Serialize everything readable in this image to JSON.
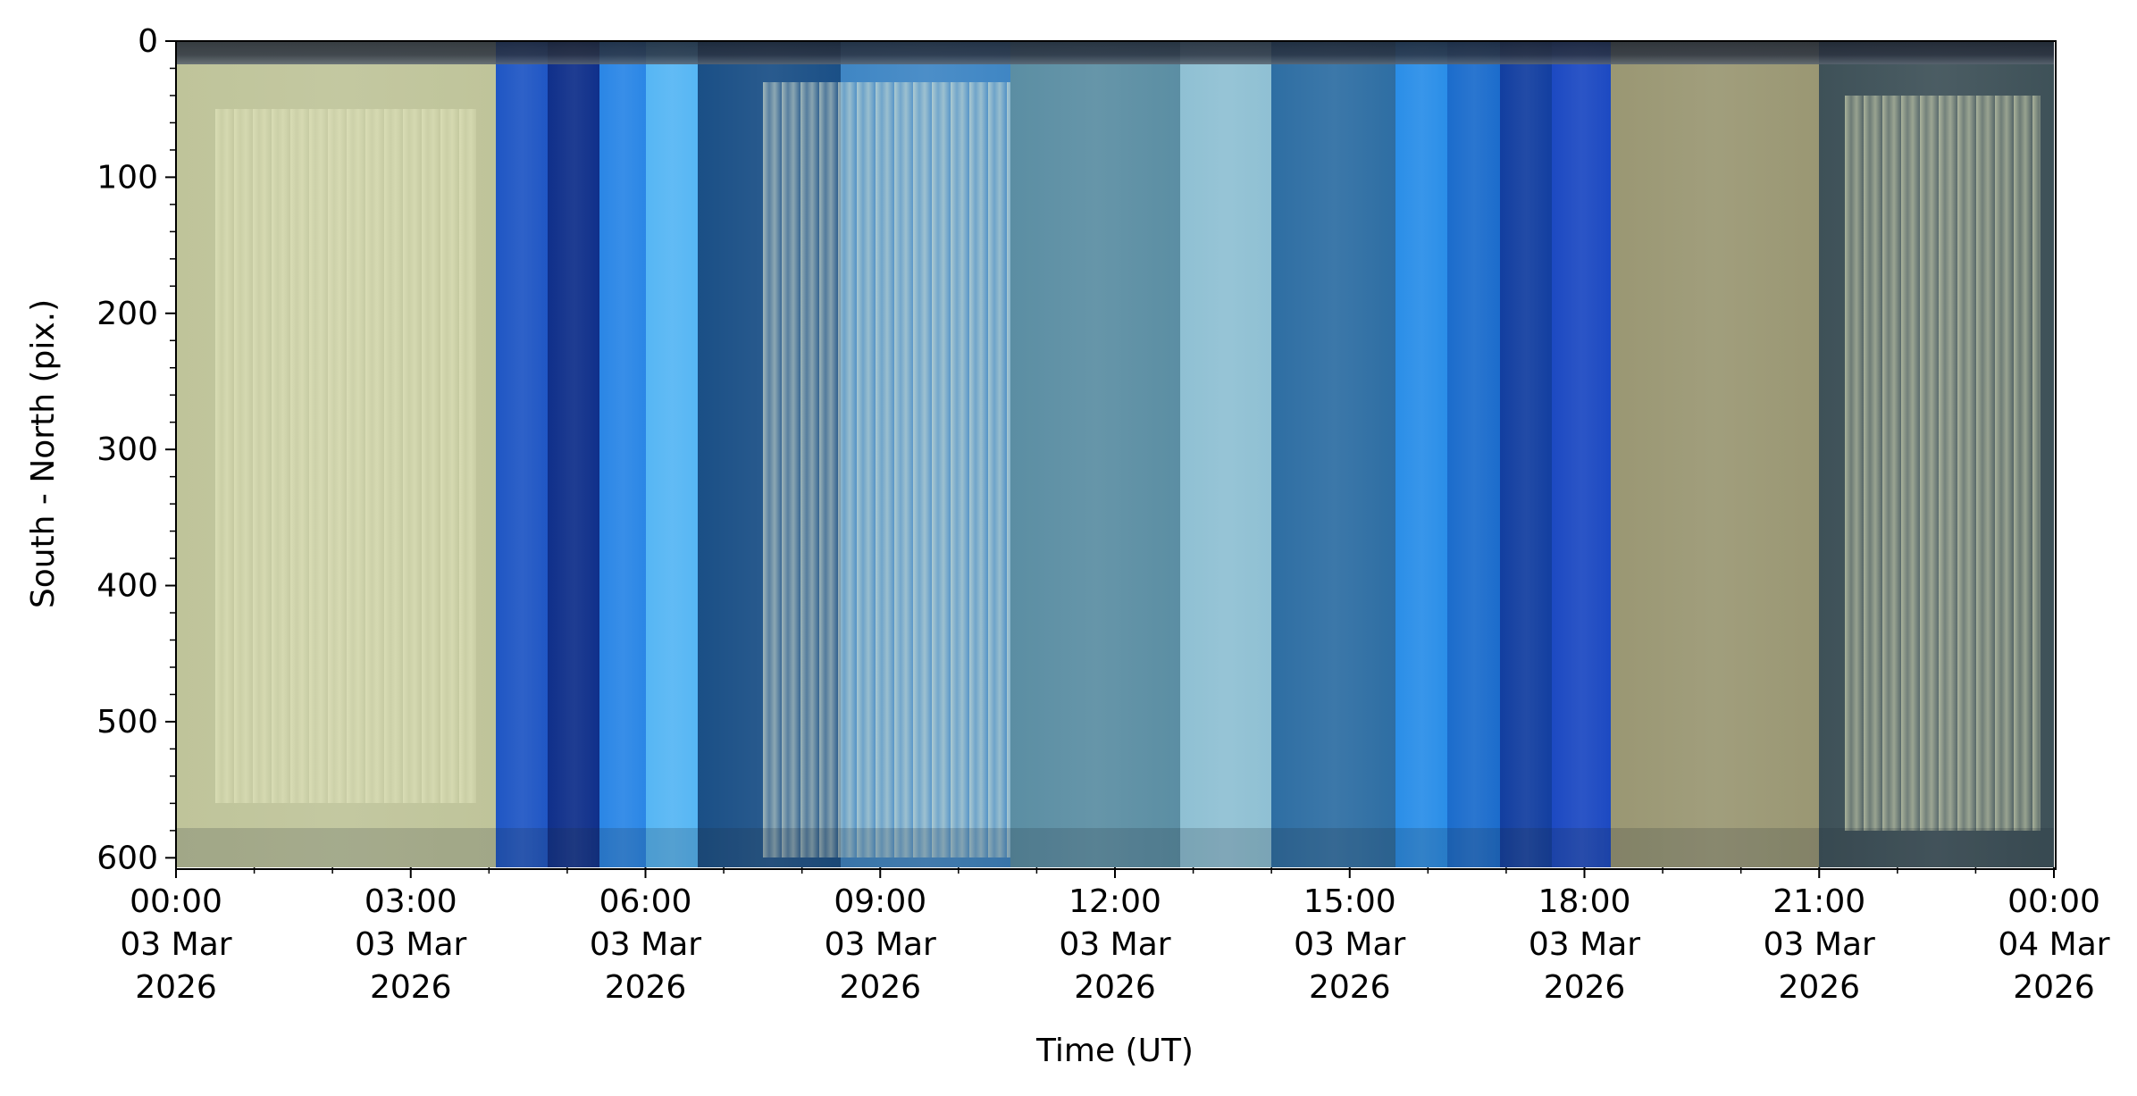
{
  "chart_data": {
    "type": "heatmap",
    "title": "",
    "xlabel": "Time (UT)",
    "ylabel": "South - North (pix.)",
    "ylim": [
      607,
      0
    ],
    "xlim": [
      "2026-03-03 00:00",
      "2026-03-04 00:00"
    ],
    "y_ticks": [
      0,
      100,
      200,
      300,
      400,
      500,
      600
    ],
    "y_tick_labels": [
      "0",
      "100",
      "200",
      "300",
      "400",
      "500",
      "600"
    ],
    "x_ticks": [
      {
        "time": "2026-03-03 00:00",
        "lines": [
          "00:00",
          "03 Mar",
          "2026"
        ]
      },
      {
        "time": "2026-03-03 03:00",
        "lines": [
          "03:00",
          "03 Mar",
          "2026"
        ]
      },
      {
        "time": "2026-03-03 06:00",
        "lines": [
          "06:00",
          "03 Mar",
          "2026"
        ]
      },
      {
        "time": "2026-03-03 09:00",
        "lines": [
          "09:00",
          "03 Mar",
          "2026"
        ]
      },
      {
        "time": "2026-03-03 12:00",
        "lines": [
          "12:00",
          "03 Mar",
          "2026"
        ]
      },
      {
        "time": "2026-03-03 15:00",
        "lines": [
          "15:00",
          "03 Mar",
          "2026"
        ]
      },
      {
        "time": "2026-03-03 18:00",
        "lines": [
          "18:00",
          "03 Mar",
          "2026"
        ]
      },
      {
        "time": "2026-03-03 21:00",
        "lines": [
          "21:00",
          "03 Mar",
          "2026"
        ]
      },
      {
        "time": "2026-03-04 00:00",
        "lines": [
          "00:00",
          "04 Mar",
          "2026"
        ]
      }
    ],
    "grid": false,
    "legend": "none",
    "time_bands": [
      {
        "start": "00:00",
        "end": "04:05",
        "color": "#bfc49a"
      },
      {
        "start": "04:05",
        "end": "04:45",
        "color": "#1f56c4"
      },
      {
        "start": "04:45",
        "end": "05:25",
        "color": "#0f2f8a"
      },
      {
        "start": "05:25",
        "end": "06:00",
        "color": "#2a86e6"
      },
      {
        "start": "06:00",
        "end": "06:40",
        "color": "#56b6f4"
      },
      {
        "start": "06:40",
        "end": "08:30",
        "color": "#1a4f86"
      },
      {
        "start": "08:30",
        "end": "10:40",
        "color": "#3f86c4"
      },
      {
        "start": "10:40",
        "end": "12:50",
        "color": "#5b8ea3"
      },
      {
        "start": "12:50",
        "end": "14:00",
        "color": "#8fc0d3"
      },
      {
        "start": "14:00",
        "end": "15:35",
        "color": "#2e6ea3"
      },
      {
        "start": "15:35",
        "end": "16:15",
        "color": "#2a8ee8"
      },
      {
        "start": "16:15",
        "end": "16:55",
        "color": "#1b6ccc"
      },
      {
        "start": "16:55",
        "end": "17:35",
        "color": "#123ea0"
      },
      {
        "start": "17:35",
        "end": "18:20",
        "color": "#1c49c2"
      },
      {
        "start": "18:20",
        "end": "21:00",
        "color": "#9a9773"
      },
      {
        "start": "21:00",
        "end": "24:00",
        "color": "#3e5158"
      }
    ],
    "bright_regions": [
      {
        "start": "00:30",
        "end": "03:50",
        "y_from": 50,
        "y_to": 560,
        "color": "#e9ecc4"
      },
      {
        "start": "07:30",
        "end": "10:40",
        "y_from": 30,
        "y_to": 600,
        "color": "#f1f5d8"
      },
      {
        "start": "21:20",
        "end": "23:50",
        "y_from": 40,
        "y_to": 580,
        "color": "#eef0c4"
      }
    ]
  }
}
